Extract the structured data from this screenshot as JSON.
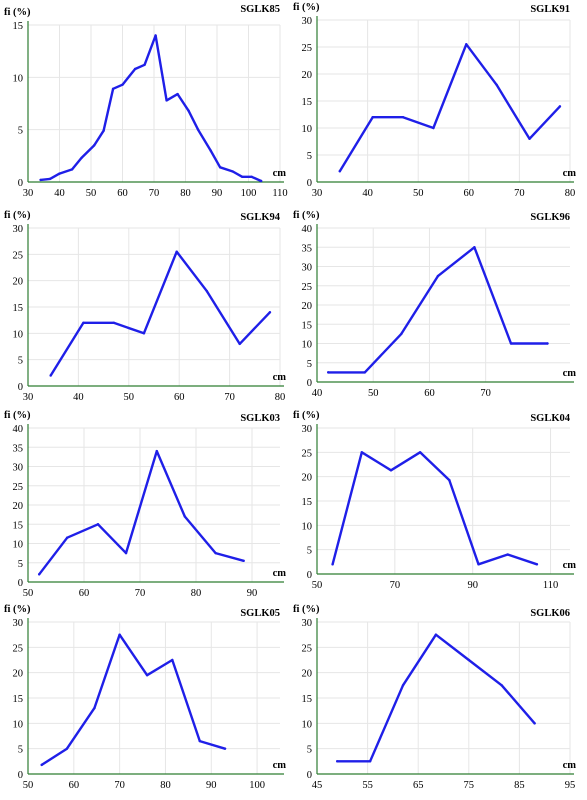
{
  "colors": {
    "line": "#1f1fe8",
    "x_axis": "#2e7d32",
    "y_axis": "#2e7d32",
    "grid": "#e6e6e6"
  },
  "chart_data": [
    {
      "type": "line",
      "title": "SGLK85",
      "title_color": "#000000",
      "ylabel": "fi (%)",
      "xlabel": "cm",
      "xlim": [
        30,
        110
      ],
      "ylim": [
        0,
        15
      ],
      "xticks": [
        30,
        40,
        50,
        60,
        70,
        80,
        90,
        100,
        110
      ],
      "yticks": [
        0,
        5,
        10,
        15
      ],
      "x": [
        34,
        37,
        40,
        44,
        47,
        51,
        54,
        57,
        60,
        64,
        67,
        70.5,
        74,
        77.5,
        81,
        84,
        88,
        91,
        95,
        98,
        101,
        104
      ],
      "y": [
        0.2,
        0.3,
        0.8,
        1.2,
        2.3,
        3.5,
        4.9,
        8.9,
        9.3,
        10.8,
        11.2,
        14.0,
        7.8,
        8.4,
        6.8,
        5.0,
        3.0,
        1.4,
        1.0,
        0.5,
        0.5,
        0.1
      ]
    },
    {
      "type": "line",
      "title": "SGLK91",
      "title_color": "#000000",
      "ylabel": "fi (%)",
      "xlabel": "cm",
      "xlim": [
        30,
        80
      ],
      "ylim": [
        0,
        30
      ],
      "xticks": [
        30,
        40,
        50,
        60,
        70,
        80
      ],
      "yticks": [
        0,
        5,
        10,
        15,
        20,
        25,
        30
      ],
      "x": [
        34.5,
        41,
        47,
        53,
        59.5,
        65.5,
        72,
        78
      ],
      "y": [
        2,
        12,
        12,
        10,
        25.5,
        18,
        8,
        14
      ]
    },
    {
      "type": "line",
      "title": "SGLK94",
      "title_color": "#000000",
      "ylabel": "fi (%)",
      "xlabel": "cm",
      "xlim": [
        30,
        80
      ],
      "ylim": [
        0,
        30
      ],
      "xticks": [
        30,
        40,
        50,
        60,
        70,
        80
      ],
      "yticks": [
        0,
        5,
        10,
        15,
        20,
        25,
        30
      ],
      "x": [
        34.5,
        41,
        47,
        53,
        59.5,
        65.5,
        72,
        78
      ],
      "y": [
        2,
        12,
        12,
        10,
        25.5,
        18,
        8,
        14
      ]
    },
    {
      "type": "line",
      "title": "SGLK96",
      "title_color": "#666666",
      "ylabel": "fi (%)",
      "xlabel": "cm",
      "xlim": [
        40,
        85
      ],
      "ylim": [
        0,
        40
      ],
      "xticks": [
        40,
        50,
        60,
        70
      ],
      "yticks": [
        0,
        5,
        10,
        15,
        20,
        25,
        30,
        35,
        40
      ],
      "x": [
        42,
        48.5,
        55,
        61.5,
        68,
        74.5,
        81
      ],
      "y": [
        2.5,
        2.5,
        12.5,
        27.5,
        35,
        10,
        10
      ]
    },
    {
      "type": "line",
      "title": "SGLK03",
      "title_color": "#666666",
      "ylabel": "fi (%)",
      "xlabel": "cm",
      "xlim": [
        50,
        95
      ],
      "ylim": [
        0,
        40
      ],
      "xticks": [
        50,
        60,
        70,
        80,
        90
      ],
      "yticks": [
        0,
        5,
        10,
        15,
        20,
        25,
        30,
        35,
        40
      ],
      "x": [
        52,
        57,
        62.5,
        67.5,
        73,
        78,
        83.5,
        88.5
      ],
      "y": [
        2,
        11.5,
        15,
        7.5,
        34,
        17,
        7.5,
        5.5
      ]
    },
    {
      "type": "line",
      "title": "SGLK04",
      "title_color": "#000000",
      "ylabel": "fi (%)",
      "xlabel": "cm",
      "xlim": [
        50,
        115
      ],
      "ylim": [
        0,
        30
      ],
      "xticks": [
        50,
        70,
        90,
        110
      ],
      "yticks": [
        0,
        5,
        10,
        15,
        20,
        25,
        30
      ],
      "x": [
        54,
        61.5,
        69,
        76.5,
        84,
        91.5,
        99,
        106.5
      ],
      "y": [
        2,
        25,
        21.3,
        25,
        19.3,
        2,
        4,
        2
      ]
    },
    {
      "type": "line",
      "title": "SGLK05",
      "title_color": "#000000",
      "ylabel": "fi (%)",
      "xlabel": "cm",
      "xlim": [
        50,
        105
      ],
      "ylim": [
        0,
        30
      ],
      "xticks": [
        50,
        60,
        70,
        80,
        90,
        100
      ],
      "yticks": [
        0,
        5,
        10,
        15,
        20,
        25,
        30
      ],
      "x": [
        53,
        58.5,
        64.5,
        70,
        76,
        81.5,
        87.5,
        93
      ],
      "y": [
        1.8,
        5,
        13,
        27.5,
        19.5,
        22.5,
        6.5,
        5
      ]
    },
    {
      "type": "line",
      "title": "SGLK06",
      "title_color": "#000000",
      "ylabel": "fi (%)",
      "xlabel": "cm",
      "xlim": [
        45,
        95
      ],
      "ylim": [
        0,
        30
      ],
      "xticks": [
        45,
        55,
        65,
        75,
        85,
        95
      ],
      "yticks": [
        0,
        5,
        10,
        15,
        20,
        25,
        30
      ],
      "x": [
        49,
        55.5,
        62,
        68.5,
        75,
        81.5,
        88
      ],
      "y": [
        2.5,
        2.5,
        17.5,
        27.5,
        22.5,
        17.5,
        10
      ]
    }
  ]
}
